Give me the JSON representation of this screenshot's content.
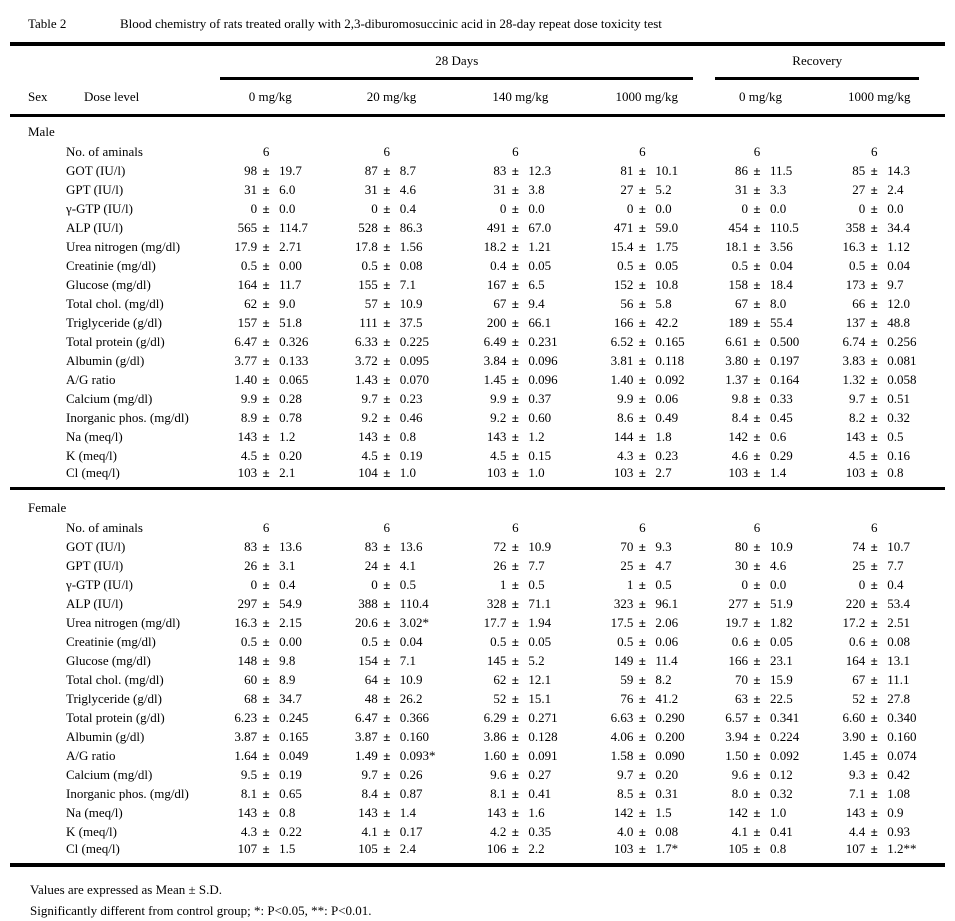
{
  "title": {
    "label": "Table 2",
    "caption": "Blood chemistry of rats treated orally with 2,3-diburomosuccinic acid in 28-day repeat dose toxicity test"
  },
  "header": {
    "sex": "Sex",
    "dose_level": "Dose level",
    "groups": [
      {
        "label": "28 Days",
        "cols": 4
      },
      {
        "label": "Recovery",
        "cols": 2
      }
    ],
    "doses": [
      "0 mg/kg",
      "20 mg/kg",
      "140 mg/kg",
      "1000 mg/kg",
      "0 mg/kg",
      "1000 mg/kg"
    ]
  },
  "sections": [
    {
      "sex": "Male",
      "rows": [
        {
          "label": "No. of aminals",
          "values": [
            "6",
            "6",
            "6",
            "6",
            "6",
            "6"
          ]
        },
        {
          "label": "GOT (IU/l)",
          "values": [
            [
              "98",
              "19.7"
            ],
            [
              "87",
              "8.7"
            ],
            [
              "83",
              "12.3"
            ],
            [
              "81",
              "10.1"
            ],
            [
              "86",
              "11.5"
            ],
            [
              "85",
              "14.3"
            ]
          ]
        },
        {
          "label": "GPT (IU/l)",
          "values": [
            [
              "31",
              "6.0"
            ],
            [
              "31",
              "4.6"
            ],
            [
              "31",
              "3.8"
            ],
            [
              "27",
              "5.2"
            ],
            [
              "31",
              "3.3"
            ],
            [
              "27",
              "2.4"
            ]
          ]
        },
        {
          "label": "γ-GTP (IU/l)",
          "values": [
            [
              "0",
              "0.0"
            ],
            [
              "0",
              "0.4"
            ],
            [
              "0",
              "0.0"
            ],
            [
              "0",
              "0.0"
            ],
            [
              "0",
              "0.0"
            ],
            [
              "0",
              "0.0"
            ]
          ]
        },
        {
          "label": "ALP (IU/l)",
          "values": [
            [
              "565",
              "114.7"
            ],
            [
              "528",
              "86.3"
            ],
            [
              "491",
              "67.0"
            ],
            [
              "471",
              "59.0"
            ],
            [
              "454",
              "110.5"
            ],
            [
              "358",
              "34.4"
            ]
          ]
        },
        {
          "label": "Urea nitrogen (mg/dl)",
          "values": [
            [
              "17.9",
              "2.71"
            ],
            [
              "17.8",
              "1.56"
            ],
            [
              "18.2",
              "1.21"
            ],
            [
              "15.4",
              "1.75"
            ],
            [
              "18.1",
              "3.56"
            ],
            [
              "16.3",
              "1.12"
            ]
          ]
        },
        {
          "label": "Creatinie (mg/dl)",
          "values": [
            [
              "0.5",
              "0.00"
            ],
            [
              "0.5",
              "0.08"
            ],
            [
              "0.4",
              "0.05"
            ],
            [
              "0.5",
              "0.05"
            ],
            [
              "0.5",
              "0.04"
            ],
            [
              "0.5",
              "0.04"
            ]
          ]
        },
        {
          "label": "Glucose (mg/dl)",
          "values": [
            [
              "164",
              "11.7"
            ],
            [
              "155",
              "7.1"
            ],
            [
              "167",
              "6.5"
            ],
            [
              "152",
              "10.8"
            ],
            [
              "158",
              "18.4"
            ],
            [
              "173",
              "9.7"
            ]
          ]
        },
        {
          "label": "Total chol. (mg/dl)",
          "values": [
            [
              "62",
              "9.0"
            ],
            [
              "57",
              "10.9"
            ],
            [
              "67",
              "9.4"
            ],
            [
              "56",
              "5.8"
            ],
            [
              "67",
              "8.0"
            ],
            [
              "66",
              "12.0"
            ]
          ]
        },
        {
          "label": "Triglyceride (g/dl)",
          "values": [
            [
              "157",
              "51.8"
            ],
            [
              "111",
              "37.5"
            ],
            [
              "200",
              "66.1"
            ],
            [
              "166",
              "42.2"
            ],
            [
              "189",
              "55.4"
            ],
            [
              "137",
              "48.8"
            ]
          ]
        },
        {
          "label": "Total protein (g/dl)",
          "values": [
            [
              "6.47",
              "0.326"
            ],
            [
              "6.33",
              "0.225"
            ],
            [
              "6.49",
              "0.231"
            ],
            [
              "6.52",
              "0.165"
            ],
            [
              "6.61",
              "0.500"
            ],
            [
              "6.74",
              "0.256"
            ]
          ]
        },
        {
          "label": "Albumin (g/dl)",
          "values": [
            [
              "3.77",
              "0.133"
            ],
            [
              "3.72",
              "0.095"
            ],
            [
              "3.84",
              "0.096"
            ],
            [
              "3.81",
              "0.118"
            ],
            [
              "3.80",
              "0.197"
            ],
            [
              "3.83",
              "0.081"
            ]
          ]
        },
        {
          "label": "A/G ratio",
          "values": [
            [
              "1.40",
              "0.065"
            ],
            [
              "1.43",
              "0.070"
            ],
            [
              "1.45",
              "0.096"
            ],
            [
              "1.40",
              "0.092"
            ],
            [
              "1.37",
              "0.164"
            ],
            [
              "1.32",
              "0.058"
            ]
          ]
        },
        {
          "label": "Calcium (mg/dl)",
          "values": [
            [
              "9.9",
              "0.28"
            ],
            [
              "9.7",
              "0.23"
            ],
            [
              "9.9",
              "0.37"
            ],
            [
              "9.9",
              "0.06"
            ],
            [
              "9.8",
              "0.33"
            ],
            [
              "9.7",
              "0.51"
            ]
          ]
        },
        {
          "label": "Inorganic phos. (mg/dl)",
          "values": [
            [
              "8.9",
              "0.78"
            ],
            [
              "9.2",
              "0.46"
            ],
            [
              "9.2",
              "0.60"
            ],
            [
              "8.6",
              "0.49"
            ],
            [
              "8.4",
              "0.45"
            ],
            [
              "8.2",
              "0.32"
            ]
          ]
        },
        {
          "label": "Na (meq/l)",
          "values": [
            [
              "143",
              "1.2"
            ],
            [
              "143",
              "0.8"
            ],
            [
              "143",
              "1.2"
            ],
            [
              "144",
              "1.8"
            ],
            [
              "142",
              "0.6"
            ],
            [
              "143",
              "0.5"
            ]
          ]
        },
        {
          "label": "K (meq/l)",
          "values": [
            [
              "4.5",
              "0.20"
            ],
            [
              "4.5",
              "0.19"
            ],
            [
              "4.5",
              "0.15"
            ],
            [
              "4.3",
              "0.23"
            ],
            [
              "4.6",
              "0.29"
            ],
            [
              "4.5",
              "0.16"
            ]
          ]
        },
        {
          "label": "Cl (meq/l)",
          "values": [
            [
              "103",
              "2.1"
            ],
            [
              "104",
              "1.0"
            ],
            [
              "103",
              "1.0"
            ],
            [
              "103",
              "2.7"
            ],
            [
              "103",
              "1.4"
            ],
            [
              "103",
              "0.8"
            ]
          ]
        }
      ]
    },
    {
      "sex": "Female",
      "rows": [
        {
          "label": "No. of aminals",
          "values": [
            "6",
            "6",
            "6",
            "6",
            "6",
            "6"
          ]
        },
        {
          "label": "GOT (IU/l)",
          "values": [
            [
              "83",
              "13.6"
            ],
            [
              "83",
              "13.6"
            ],
            [
              "72",
              "10.9"
            ],
            [
              "70",
              "9.3"
            ],
            [
              "80",
              "10.9"
            ],
            [
              "74",
              "10.7"
            ]
          ]
        },
        {
          "label": "GPT (IU/l)",
          "values": [
            [
              "26",
              "3.1"
            ],
            [
              "24",
              "4.1"
            ],
            [
              "26",
              "7.7"
            ],
            [
              "25",
              "4.7"
            ],
            [
              "30",
              "4.6"
            ],
            [
              "25",
              "7.7"
            ]
          ]
        },
        {
          "label": "γ-GTP (IU/l)",
          "values": [
            [
              "0",
              "0.4"
            ],
            [
              "0",
              "0.5"
            ],
            [
              "1",
              "0.5"
            ],
            [
              "1",
              "0.5"
            ],
            [
              "0",
              "0.0"
            ],
            [
              "0",
              "0.4"
            ]
          ]
        },
        {
          "label": "ALP (IU/l)",
          "values": [
            [
              "297",
              "54.9"
            ],
            [
              "388",
              "110.4"
            ],
            [
              "328",
              "71.1"
            ],
            [
              "323",
              "96.1"
            ],
            [
              "277",
              "51.9"
            ],
            [
              "220",
              "53.4"
            ]
          ]
        },
        {
          "label": "Urea nitrogen (mg/dl)",
          "values": [
            [
              "16.3",
              "2.15"
            ],
            [
              "20.6",
              "3.02*"
            ],
            [
              "17.7",
              "1.94"
            ],
            [
              "17.5",
              "2.06"
            ],
            [
              "19.7",
              "1.82"
            ],
            [
              "17.2",
              "2.51"
            ]
          ]
        },
        {
          "label": "Creatinie (mg/dl)",
          "values": [
            [
              "0.5",
              "0.00"
            ],
            [
              "0.5",
              "0.04"
            ],
            [
              "0.5",
              "0.05"
            ],
            [
              "0.5",
              "0.06"
            ],
            [
              "0.6",
              "0.05"
            ],
            [
              "0.6",
              "0.08"
            ]
          ]
        },
        {
          "label": "Glucose (mg/dl)",
          "values": [
            [
              "148",
              "9.8"
            ],
            [
              "154",
              "7.1"
            ],
            [
              "145",
              "5.2"
            ],
            [
              "149",
              "11.4"
            ],
            [
              "166",
              "23.1"
            ],
            [
              "164",
              "13.1"
            ]
          ]
        },
        {
          "label": "Total chol. (mg/dl)",
          "values": [
            [
              "60",
              "8.9"
            ],
            [
              "64",
              "10.9"
            ],
            [
              "62",
              "12.1"
            ],
            [
              "59",
              "8.2"
            ],
            [
              "70",
              "15.9"
            ],
            [
              "67",
              "11.1"
            ]
          ]
        },
        {
          "label": "Triglyceride (g/dl)",
          "values": [
            [
              "68",
              "34.7"
            ],
            [
              "48",
              "26.2"
            ],
            [
              "52",
              "15.1"
            ],
            [
              "76",
              "41.2"
            ],
            [
              "63",
              "22.5"
            ],
            [
              "52",
              "27.8"
            ]
          ]
        },
        {
          "label": "Total protein (g/dl)",
          "values": [
            [
              "6.23",
              "0.245"
            ],
            [
              "6.47",
              "0.366"
            ],
            [
              "6.29",
              "0.271"
            ],
            [
              "6.63",
              "0.290"
            ],
            [
              "6.57",
              "0.341"
            ],
            [
              "6.60",
              "0.340"
            ]
          ]
        },
        {
          "label": "Albumin (g/dl)",
          "values": [
            [
              "3.87",
              "0.165"
            ],
            [
              "3.87",
              "0.160"
            ],
            [
              "3.86",
              "0.128"
            ],
            [
              "4.06",
              "0.200"
            ],
            [
              "3.94",
              "0.224"
            ],
            [
              "3.90",
              "0.160"
            ]
          ]
        },
        {
          "label": "A/G ratio",
          "values": [
            [
              "1.64",
              "0.049"
            ],
            [
              "1.49",
              "0.093*"
            ],
            [
              "1.60",
              "0.091"
            ],
            [
              "1.58",
              "0.090"
            ],
            [
              "1.50",
              "0.092"
            ],
            [
              "1.45",
              "0.074"
            ]
          ]
        },
        {
          "label": "Calcium (mg/dl)",
          "values": [
            [
              "9.5",
              "0.19"
            ],
            [
              "9.7",
              "0.26"
            ],
            [
              "9.6",
              "0.27"
            ],
            [
              "9.7",
              "0.20"
            ],
            [
              "9.6",
              "0.12"
            ],
            [
              "9.3",
              "0.42"
            ]
          ]
        },
        {
          "label": "Inorganic phos. (mg/dl)",
          "values": [
            [
              "8.1",
              "0.65"
            ],
            [
              "8.4",
              "0.87"
            ],
            [
              "8.1",
              "0.41"
            ],
            [
              "8.5",
              "0.31"
            ],
            [
              "8.0",
              "0.32"
            ],
            [
              "7.1",
              "1.08"
            ]
          ]
        },
        {
          "label": "Na (meq/l)",
          "values": [
            [
              "143",
              "0.8"
            ],
            [
              "143",
              "1.4"
            ],
            [
              "143",
              "1.6"
            ],
            [
              "142",
              "1.5"
            ],
            [
              "142",
              "1.0"
            ],
            [
              "143",
              "0.9"
            ]
          ]
        },
        {
          "label": "K (meq/l)",
          "values": [
            [
              "4.3",
              "0.22"
            ],
            [
              "4.1",
              "0.17"
            ],
            [
              "4.2",
              "0.35"
            ],
            [
              "4.0",
              "0.08"
            ],
            [
              "4.1",
              "0.41"
            ],
            [
              "4.4",
              "0.93"
            ]
          ]
        },
        {
          "label": "Cl (meq/l)",
          "values": [
            [
              "107",
              "1.5"
            ],
            [
              "105",
              "2.4"
            ],
            [
              "106",
              "2.2"
            ],
            [
              "103",
              "1.7*"
            ],
            [
              "105",
              "0.8"
            ],
            [
              "107",
              "1.2**"
            ]
          ]
        }
      ]
    }
  ],
  "plus_minus": "±",
  "notes": [
    "Values are expressed as Mean ± S.D.",
    "Significantly different from control group;  *: P<0.05,  **: P<0.01."
  ]
}
